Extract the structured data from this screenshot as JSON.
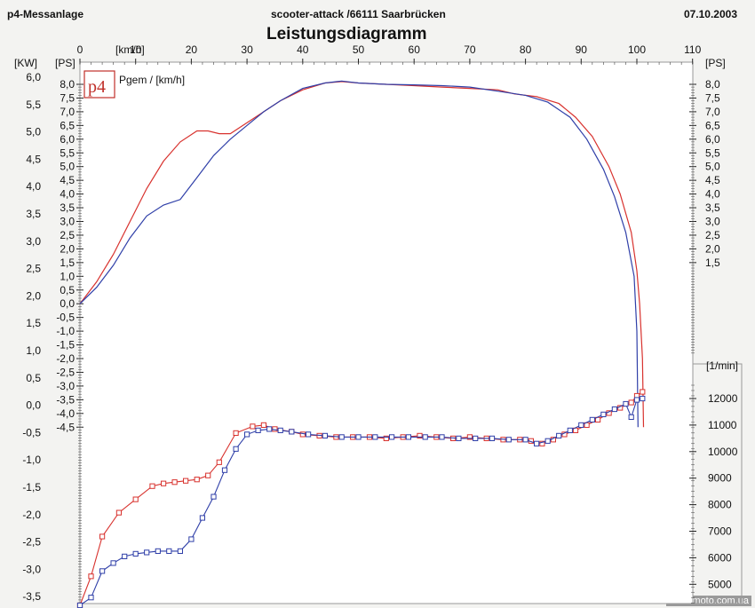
{
  "header": {
    "left": "p4-Messanlage",
    "center": "scooter-attack  /66111 Saarbrücken",
    "right": "07.10.2003"
  },
  "footer": {
    "watermark": "www.moto.com.ua"
  },
  "logo": {
    "text": "p4"
  },
  "colors": {
    "series_red": "#d8322e",
    "series_blue": "#2f3fa8",
    "axis": "#222222",
    "frame": "#999999"
  },
  "chart_data": {
    "type": "line",
    "title": "Leistungsdiagramm",
    "legend": "Pgem / [km/h]",
    "units": {
      "kw": "[KW]",
      "ps_left": "[PS]",
      "kmh": "[km/h]",
      "ps_right": "[PS]",
      "rpm": "[1/min]"
    },
    "x_axis": {
      "label": "[km/h]",
      "range": [
        0,
        110
      ],
      "ticks": [
        0,
        10,
        20,
        30,
        40,
        50,
        60,
        70,
        80,
        90,
        100,
        110
      ]
    },
    "y_axis_kw": {
      "label": "[KW]",
      "ticks": [
        "6,0",
        "5,5",
        "5,0",
        "4,5",
        "4,0",
        "3,5",
        "3,0",
        "2,5",
        "2,0",
        "1,5",
        "1,0",
        "0,5",
        "0,0",
        "-0,5",
        "-1,0",
        "-1,5",
        "-2,0",
        "-2,5",
        "-3,0",
        "-3,5"
      ]
    },
    "y_axis_ps_left": {
      "label": "[PS]",
      "ticks": [
        "8,0",
        "7,5",
        "7,0",
        "6,5",
        "6,0",
        "5,5",
        "5,0",
        "4,5",
        "4,0",
        "3,5",
        "3,0",
        "2,5",
        "2,0",
        "1,5",
        "1,0",
        "0,5",
        "0,0",
        "-0,5",
        "-1,0",
        "-1,5",
        "-2,0",
        "-2,5",
        "-3,0",
        "-3,5",
        "-4,0",
        "-4,5"
      ]
    },
    "y_axis_ps_right": {
      "label": "[PS]",
      "ticks": [
        "8,0",
        "7,5",
        "7,0",
        "6,5",
        "6,0",
        "5,5",
        "5,0",
        "4,5",
        "4,0",
        "3,5",
        "3,0",
        "2,5",
        "2,0",
        "1,5"
      ]
    },
    "y_axis_rpm": {
      "label": "[1/min]",
      "ticks": [
        "12000",
        "11000",
        "10000",
        "9000",
        "8000",
        "7000",
        "6000",
        "5000"
      ]
    },
    "power_series": [
      {
        "color": "red",
        "points": [
          [
            0,
            0.0
          ],
          [
            3,
            0.8
          ],
          [
            6,
            1.8
          ],
          [
            9,
            3.0
          ],
          [
            12,
            4.2
          ],
          [
            15,
            5.2
          ],
          [
            18,
            5.9
          ],
          [
            21,
            6.3
          ],
          [
            23,
            6.3
          ],
          [
            25,
            6.2
          ],
          [
            27,
            6.2
          ],
          [
            30,
            6.6
          ],
          [
            33,
            7.0
          ],
          [
            36,
            7.4
          ],
          [
            40,
            7.8
          ],
          [
            44,
            8.05
          ],
          [
            47,
            8.1
          ],
          [
            50,
            8.05
          ],
          [
            55,
            8.0
          ],
          [
            60,
            7.95
          ],
          [
            65,
            7.9
          ],
          [
            70,
            7.85
          ],
          [
            75,
            7.8
          ],
          [
            78,
            7.65
          ],
          [
            82,
            7.55
          ],
          [
            86,
            7.3
          ],
          [
            89,
            6.8
          ],
          [
            92,
            6.1
          ],
          [
            95,
            5.0
          ],
          [
            97,
            4.0
          ],
          [
            99,
            2.6
          ],
          [
            100,
            1.2
          ],
          [
            100.5,
            0.0
          ],
          [
            101,
            -2.0
          ],
          [
            101.2,
            -4.5
          ]
        ]
      },
      {
        "color": "blue",
        "points": [
          [
            0,
            0.0
          ],
          [
            3,
            0.6
          ],
          [
            6,
            1.4
          ],
          [
            9,
            2.4
          ],
          [
            12,
            3.2
          ],
          [
            15,
            3.6
          ],
          [
            18,
            3.8
          ],
          [
            21,
            4.6
          ],
          [
            24,
            5.4
          ],
          [
            27,
            6.0
          ],
          [
            30,
            6.5
          ],
          [
            33,
            7.0
          ],
          [
            36,
            7.4
          ],
          [
            40,
            7.85
          ],
          [
            44,
            8.05
          ],
          [
            47,
            8.12
          ],
          [
            50,
            8.05
          ],
          [
            55,
            8.0
          ],
          [
            60,
            7.98
          ],
          [
            65,
            7.95
          ],
          [
            70,
            7.9
          ],
          [
            75,
            7.75
          ],
          [
            80,
            7.6
          ],
          [
            84,
            7.35
          ],
          [
            88,
            6.8
          ],
          [
            91,
            6.0
          ],
          [
            94,
            4.9
          ],
          [
            96,
            3.9
          ],
          [
            98,
            2.6
          ],
          [
            99.5,
            1.0
          ],
          [
            100,
            -1.0
          ],
          [
            100.2,
            -4.5
          ]
        ]
      }
    ],
    "rpm_series": [
      {
        "color": "red",
        "points": [
          [
            0,
            3600
          ],
          [
            2,
            5300
          ],
          [
            4,
            6800
          ],
          [
            7,
            7700
          ],
          [
            10,
            8200
          ],
          [
            13,
            8700
          ],
          [
            15,
            8800
          ],
          [
            17,
            8850
          ],
          [
            19,
            8900
          ],
          [
            21,
            8950
          ],
          [
            23,
            9100
          ],
          [
            25,
            9600
          ],
          [
            28,
            10700
          ],
          [
            31,
            10950
          ],
          [
            33,
            11000
          ],
          [
            35,
            10850
          ],
          [
            38,
            10750
          ],
          [
            40,
            10650
          ],
          [
            43,
            10600
          ],
          [
            46,
            10550
          ],
          [
            49,
            10550
          ],
          [
            52,
            10550
          ],
          [
            55,
            10500
          ],
          [
            58,
            10550
          ],
          [
            61,
            10600
          ],
          [
            64,
            10550
          ],
          [
            67,
            10500
          ],
          [
            70,
            10550
          ],
          [
            73,
            10500
          ],
          [
            76,
            10450
          ],
          [
            79,
            10450
          ],
          [
            81,
            10400
          ],
          [
            83,
            10300
          ],
          [
            85,
            10450
          ],
          [
            87,
            10650
          ],
          [
            89,
            10800
          ],
          [
            91,
            11000
          ],
          [
            93,
            11200
          ],
          [
            95,
            11450
          ],
          [
            97,
            11650
          ],
          [
            99,
            11850
          ],
          [
            100,
            12100
          ],
          [
            101,
            12250
          ]
        ]
      },
      {
        "color": "blue",
        "points": [
          [
            0,
            3600
          ],
          [
            2,
            4500
          ],
          [
            4,
            5500
          ],
          [
            6,
            5800
          ],
          [
            8,
            6050
          ],
          [
            10,
            6150
          ],
          [
            12,
            6200
          ],
          [
            14,
            6250
          ],
          [
            16,
            6250
          ],
          [
            18,
            6250
          ],
          [
            20,
            6700
          ],
          [
            22,
            7500
          ],
          [
            24,
            8300
          ],
          [
            26,
            9300
          ],
          [
            28,
            10100
          ],
          [
            30,
            10650
          ],
          [
            32,
            10800
          ],
          [
            34,
            10850
          ],
          [
            36,
            10800
          ],
          [
            38,
            10750
          ],
          [
            41,
            10650
          ],
          [
            44,
            10600
          ],
          [
            47,
            10550
          ],
          [
            50,
            10550
          ],
          [
            53,
            10550
          ],
          [
            56,
            10550
          ],
          [
            59,
            10550
          ],
          [
            62,
            10550
          ],
          [
            65,
            10550
          ],
          [
            68,
            10500
          ],
          [
            71,
            10500
          ],
          [
            74,
            10500
          ],
          [
            77,
            10450
          ],
          [
            80,
            10450
          ],
          [
            82,
            10300
          ],
          [
            84,
            10400
          ],
          [
            86,
            10600
          ],
          [
            88,
            10800
          ],
          [
            90,
            11000
          ],
          [
            92,
            11200
          ],
          [
            94,
            11400
          ],
          [
            96,
            11600
          ],
          [
            98,
            11800
          ],
          [
            99,
            11300
          ],
          [
            100,
            11950
          ],
          [
            101,
            12000
          ]
        ]
      }
    ]
  }
}
